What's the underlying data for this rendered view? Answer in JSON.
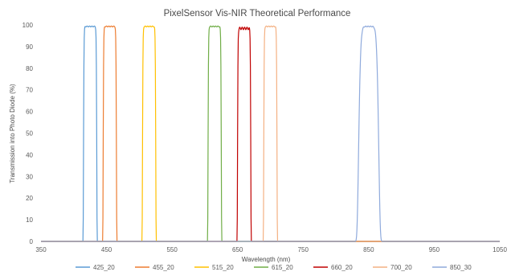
{
  "chart_data": {
    "type": "line",
    "title": "PixelSensor Vis-NIR Theoretical Performance",
    "xlabel": "Wavelength (nm)",
    "ylabel": "Transmission into Photo Diode (%)",
    "xlim": [
      350,
      1050
    ],
    "ylim": [
      0,
      100
    ],
    "xticks": [
      350,
      450,
      550,
      650,
      750,
      850,
      950,
      1050
    ],
    "yticks": [
      0,
      10,
      20,
      30,
      40,
      50,
      60,
      70,
      80,
      90,
      100
    ],
    "grid": false,
    "legend_position": "bottom",
    "series": [
      {
        "name": "425_20",
        "color": "#5b9bd5",
        "center": 425,
        "fwhm": 20,
        "peak": 99.5
      },
      {
        "name": "455_20",
        "color": "#ed7d31",
        "center": 455,
        "fwhm": 20,
        "peak": 99.5
      },
      {
        "name": "515_20",
        "color": "#ffc000",
        "center": 515,
        "fwhm": 20,
        "peak": 99.5
      },
      {
        "name": "615_20",
        "color": "#70ad47",
        "center": 615,
        "fwhm": 20,
        "peak": 99.5
      },
      {
        "name": "660_20",
        "color": "#c00000",
        "center": 660,
        "fwhm": 20,
        "peak": 99.0
      },
      {
        "name": "700_20",
        "color": "#f4b183",
        "center": 700,
        "fwhm": 20,
        "peak": 99.5
      },
      {
        "name": "850_30",
        "color": "#8faadc",
        "center": 850,
        "fwhm": 30,
        "peak": 99.5
      }
    ]
  }
}
